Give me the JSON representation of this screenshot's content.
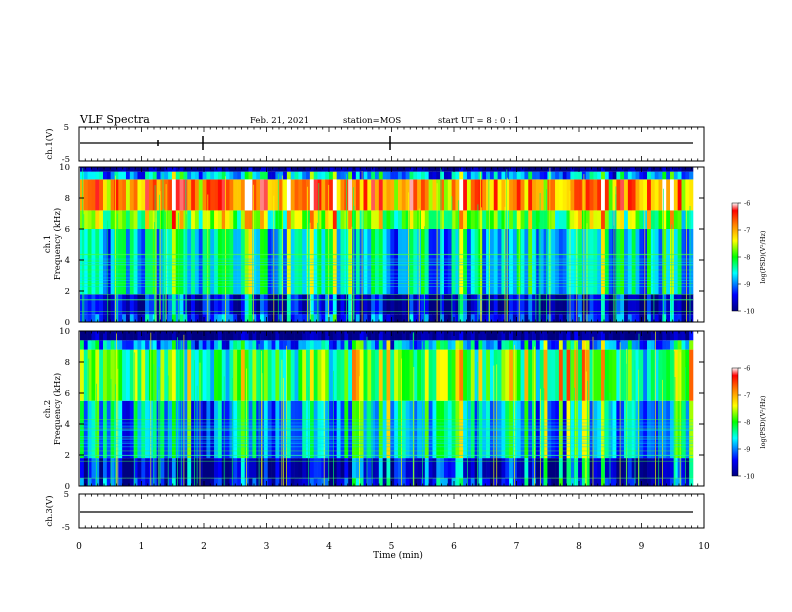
{
  "header": {
    "title": "VLF Spectra",
    "date": "Feb. 21, 2021",
    "station": "station=MOS",
    "start": "start UT =  8 : 0  : 1"
  },
  "colorbar": {
    "label": "log(PSD)(V²/Hz)",
    "ticks": [
      "-6",
      "-7",
      "-8",
      "-9",
      "-10"
    ],
    "range": [
      -10,
      -6
    ],
    "stops": [
      "#000080",
      "#0000ff",
      "#00ffff",
      "#00ff00",
      "#ffff00",
      "#ff8000",
      "#ff0000",
      "#ffffff"
    ]
  },
  "chart_data": [
    {
      "type": "line",
      "name": "ch1-voltage",
      "ylabel": "ch.1(V)",
      "ylim": [
        -5,
        5
      ],
      "yticks": [
        "5",
        "-5"
      ],
      "x": [
        0,
        10
      ],
      "y": [
        0,
        0
      ]
    },
    {
      "type": "heatmap",
      "name": "ch1-spectrogram",
      "ylabel": "ch.1\nFrequency (kHz)",
      "ylim": [
        0,
        10
      ],
      "yticks": [
        "10",
        "8",
        "6",
        "4",
        "2",
        "0"
      ],
      "xlim": [
        0,
        10
      ],
      "bands": [
        {
          "f": [
            0,
            0.5
          ],
          "level": -9.5
        },
        {
          "f": [
            0.5,
            1.8
          ],
          "level": -9.8
        },
        {
          "f": [
            1.8,
            6.0
          ],
          "level": -8.8
        },
        {
          "f": [
            6.0,
            7.2
          ],
          "level": -8.0
        },
        {
          "f": [
            7.2,
            9.2
          ],
          "level": -7.0
        },
        {
          "f": [
            9.2,
            9.7
          ],
          "level": -9.0
        },
        {
          "f": [
            9.7,
            10
          ],
          "level": -10
        }
      ]
    },
    {
      "type": "heatmap",
      "name": "ch2-spectrogram",
      "ylabel": "ch.2\nFrequency (kHz)",
      "ylim": [
        0,
        10
      ],
      "yticks": [
        "10",
        "8",
        "6",
        "4",
        "2",
        "0"
      ],
      "xlim": [
        0,
        10
      ],
      "bands": [
        {
          "f": [
            0,
            0.5
          ],
          "level": -9.6
        },
        {
          "f": [
            0.5,
            1.8
          ],
          "level": -9.8
        },
        {
          "f": [
            1.8,
            5.5
          ],
          "level": -8.9
        },
        {
          "f": [
            5.5,
            8.8
          ],
          "level": -8.2
        },
        {
          "f": [
            8.8,
            9.4
          ],
          "level": -9.0
        },
        {
          "f": [
            9.4,
            10
          ],
          "level": -10
        }
      ]
    },
    {
      "type": "line",
      "name": "ch3-voltage",
      "ylabel": "ch.3(V)",
      "ylim": [
        -5,
        5
      ],
      "yticks": [
        "5",
        "-5"
      ],
      "x": [
        0,
        10
      ],
      "y": [
        0,
        0
      ]
    }
  ],
  "xaxis": {
    "label": "Time (min)",
    "ticks": [
      "0",
      "1",
      "2",
      "3",
      "4",
      "5",
      "6",
      "7",
      "8",
      "9",
      "10"
    ]
  }
}
